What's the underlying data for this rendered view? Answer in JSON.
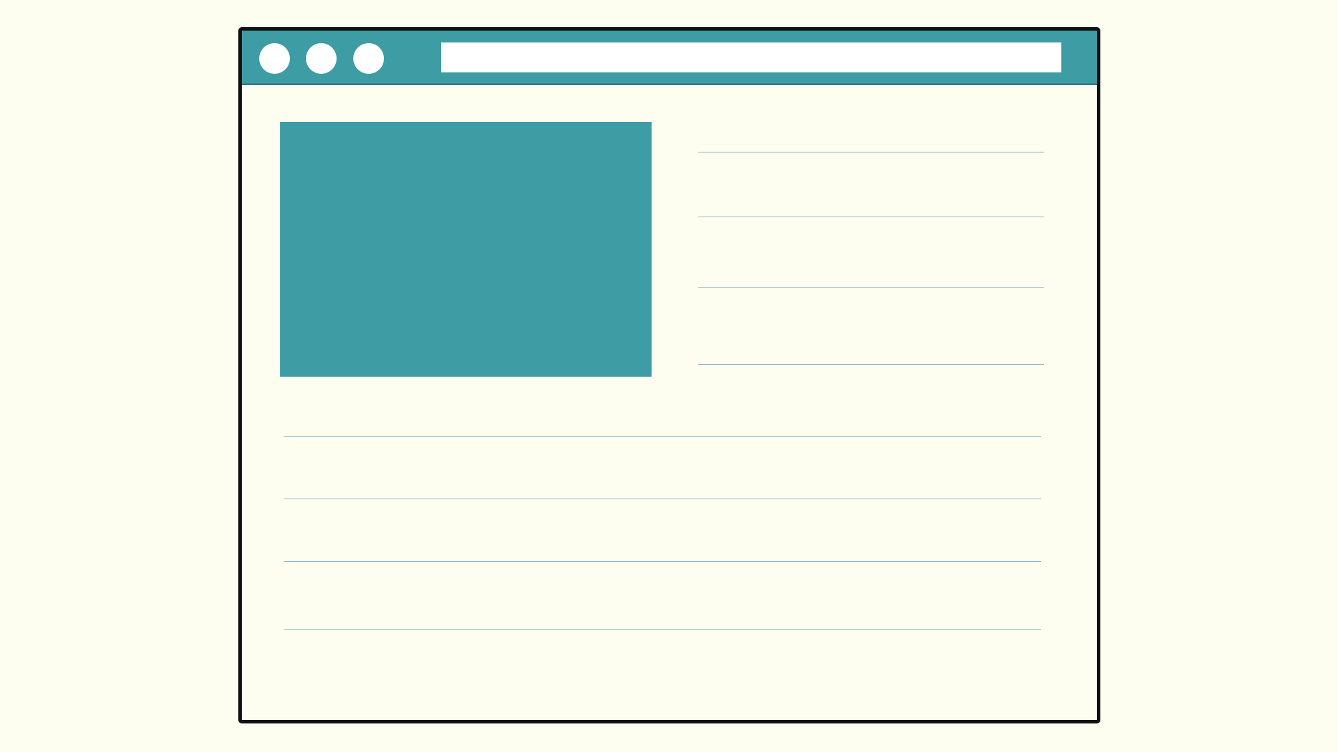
{
  "theme": {
    "accent": "#3e9da4",
    "background": "#fdfdf0",
    "frame": "#111111",
    "rule": "#8fb8cc"
  },
  "window": {
    "controls": [
      {
        "icon": "window-control-circle-icon"
      },
      {
        "icon": "window-control-circle-icon"
      },
      {
        "icon": "window-control-circle-icon"
      }
    ],
    "address_bar": {
      "value": "",
      "placeholder": ""
    }
  },
  "content": {
    "hero_image": {
      "icon": "image-placeholder"
    },
    "side_text_lines": 4,
    "body_text_lines": 4
  }
}
